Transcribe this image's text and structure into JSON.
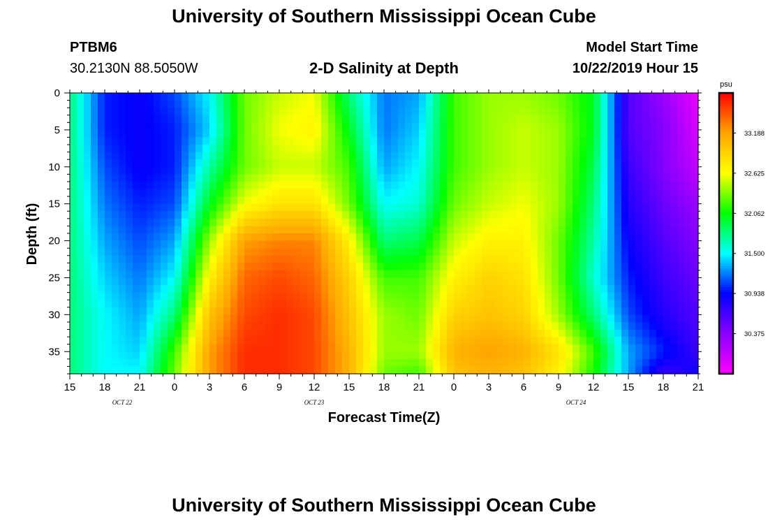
{
  "page": {
    "top_title": "University of Southern Mississippi Ocean Cube",
    "bottom_title": "University of Southern Mississippi Ocean Cube",
    "station_id": "PTBM6",
    "station_coords": "30.2130N 88.5050W",
    "plot_title": "2-D Salinity at Depth",
    "model_start_label": "Model Start Time",
    "model_start_value": "10/22/2019 Hour 15"
  },
  "colors": {
    "colormap": [
      "#ff00ff",
      "#8a00ff",
      "#0000ff",
      "#00ffff",
      "#00ff00",
      "#ffff00",
      "#ffa500",
      "#ff0000"
    ],
    "frame": "#000000"
  },
  "chart_data": {
    "type": "heatmap",
    "xlabel": "Forecast Time(Z)",
    "ylabel": "Depth (ft)",
    "x_tick_labels": [
      "15",
      "18",
      "21",
      "0",
      "3",
      "6",
      "9",
      "12",
      "15",
      "18",
      "21",
      "0",
      "3",
      "6",
      "9",
      "12",
      "15",
      "18",
      "21"
    ],
    "date_labels": [
      {
        "label": "OCT 22",
        "at_hours": 4.5
      },
      {
        "label": "OCT 23",
        "at_hours": 21
      },
      {
        "label": "OCT 24",
        "at_hours": 43.5
      }
    ],
    "x_range_hours": [
      0,
      54
    ],
    "y_ticks": [
      0,
      5,
      10,
      15,
      20,
      25,
      30,
      35
    ],
    "y_range_ft": [
      0,
      38
    ],
    "colorbar": {
      "unit": "psu",
      "min": 29.8125,
      "max": 33.75,
      "tick_values": [
        30.375,
        30.938,
        31.5,
        32.062,
        32.625,
        33.188
      ],
      "tick_labels": [
        "30.375",
        "30.938",
        "31.500",
        "32.062",
        "32.625",
        "33.188"
      ]
    },
    "times_hours": [
      0,
      3,
      6,
      9,
      12,
      15,
      18,
      21,
      24,
      27,
      30,
      33,
      36,
      39,
      42,
      45,
      48,
      51,
      54
    ],
    "depths_ft": [
      0,
      5,
      10,
      15,
      20,
      25,
      30,
      35,
      38
    ],
    "values_psu": [
      [
        31.8,
        31.0,
        30.9,
        31.1,
        31.5,
        32.3,
        32.5,
        32.6,
        31.8,
        31.2,
        31.3,
        32.2,
        32.4,
        32.4,
        32.3,
        32.0,
        30.6,
        30.3,
        29.9
      ],
      [
        31.8,
        31.0,
        30.9,
        31.0,
        31.4,
        32.3,
        32.6,
        32.7,
        32.0,
        31.2,
        31.4,
        32.2,
        32.4,
        32.5,
        32.4,
        32.0,
        30.6,
        30.4,
        30.0
      ],
      [
        31.8,
        31.1,
        30.9,
        31.0,
        31.7,
        32.3,
        32.5,
        32.5,
        32.2,
        31.3,
        31.5,
        32.2,
        32.4,
        32.5,
        32.4,
        31.9,
        30.7,
        30.4,
        30.1
      ],
      [
        31.8,
        31.2,
        31.0,
        31.1,
        32.0,
        32.6,
        32.8,
        32.8,
        32.3,
        31.5,
        31.6,
        32.3,
        32.5,
        32.6,
        32.4,
        31.8,
        30.8,
        30.5,
        30.3
      ],
      [
        31.8,
        31.3,
        31.1,
        31.3,
        32.4,
        33.2,
        33.3,
        33.3,
        32.7,
        31.8,
        31.9,
        32.5,
        32.7,
        32.7,
        32.3,
        31.7,
        30.9,
        30.6,
        30.4
      ],
      [
        31.8,
        31.4,
        31.2,
        31.5,
        32.7,
        33.4,
        33.5,
        33.4,
        32.9,
        32.2,
        32.2,
        32.7,
        32.9,
        32.8,
        32.3,
        31.6,
        31.0,
        30.7,
        30.5
      ],
      [
        31.8,
        31.5,
        31.3,
        31.8,
        33.0,
        33.5,
        33.6,
        33.5,
        33.0,
        32.4,
        32.3,
        32.9,
        33.0,
        32.9,
        32.4,
        31.8,
        31.1,
        30.8,
        30.6
      ],
      [
        31.8,
        31.5,
        31.4,
        32.2,
        33.2,
        33.6,
        33.6,
        33.5,
        33.1,
        32.4,
        32.4,
        33.1,
        33.2,
        33.1,
        32.8,
        32.2,
        31.3,
        31.0,
        30.7
      ],
      [
        31.8,
        31.5,
        31.5,
        32.3,
        33.2,
        33.6,
        33.6,
        33.5,
        33.1,
        32.3,
        32.2,
        33.0,
        33.1,
        33.0,
        32.7,
        32.1,
        31.3,
        30.7,
        30.9
      ]
    ]
  }
}
